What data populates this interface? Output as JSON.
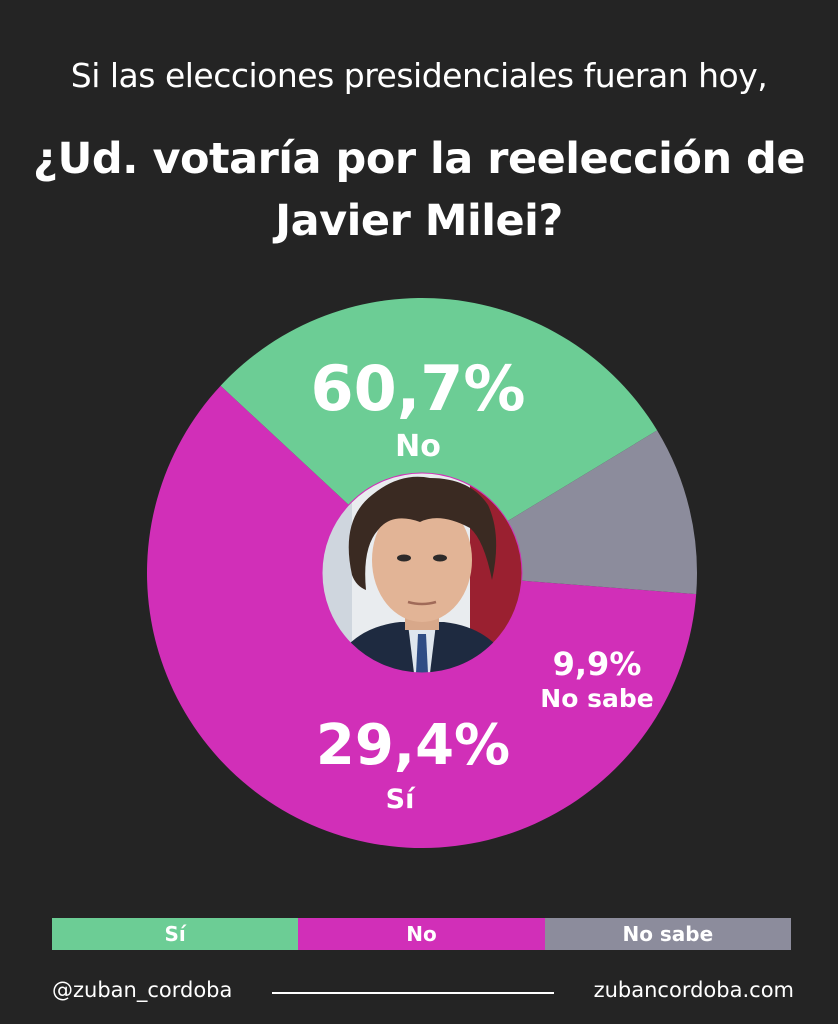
{
  "header": {
    "subtitle": "Si las elecciones presidenciales fueran hoy,",
    "title": "¿Ud. votaría por la reelección de Javier Milei?"
  },
  "chart_data": {
    "type": "pie",
    "style": "donut",
    "categories": [
      "No",
      "Sí",
      "No sabe"
    ],
    "values": [
      60.7,
      29.4,
      9.9
    ],
    "value_labels": [
      "60,7%",
      "29,4%",
      "9,9%"
    ],
    "colors": [
      "#d12fb8",
      "#6ccd95",
      "#8c8c9c"
    ],
    "center": "portrait photo"
  },
  "legend": {
    "items": [
      {
        "label": "Sí",
        "color": "#6ccd95"
      },
      {
        "label": "No",
        "color": "#d12fb8"
      },
      {
        "label": "No sabe",
        "color": "#8c8c9c"
      }
    ]
  },
  "footer": {
    "handle": "@zuban_cordoba",
    "website": "zubancordoba.com"
  }
}
